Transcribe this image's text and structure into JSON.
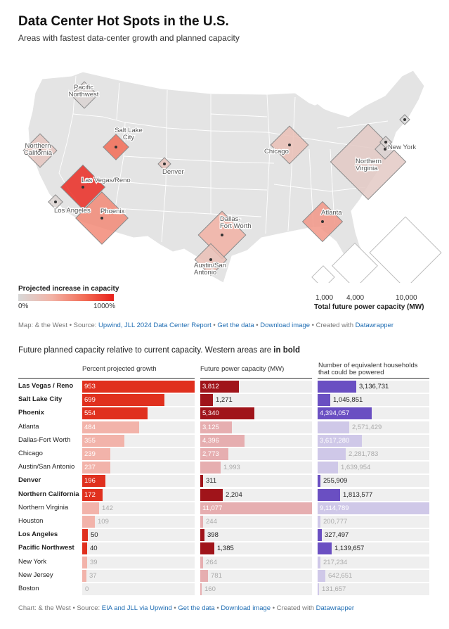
{
  "header": {
    "title": "Data Center Hot Spots in the U.S.",
    "subtitle": "Areas with fastest data-center growth and planned capacity"
  },
  "colors": {
    "growth_west": "#e0301e",
    "growth_other": "#f2b3aa",
    "power_west": "#a0141a",
    "power_other": "#e6aeb0",
    "households_west": "#6a4fc2",
    "households_other": "#cfc8e8",
    "track": "#efefef",
    "land": "#e4e4e4",
    "state_border": "#ffffff"
  },
  "map": {
    "legend": {
      "title": "Projected increase in capacity",
      "min_label": "0%",
      "max_label": "1000%",
      "size_title": "Total future power capacity (MW)",
      "size_labels": [
        "1,000",
        "4,000",
        "10,000"
      ]
    },
    "markers": [
      {
        "name": "Pacific Northwest",
        "lines": [
          "Pacific",
          "Northwest"
        ],
        "growth": 40,
        "mw": 1385
      },
      {
        "name": "Northern California",
        "lines": [
          "Northern",
          "California"
        ],
        "growth": 172,
        "mw": 2204
      },
      {
        "name": "Salt Lake City",
        "lines": [
          "Salt Lake",
          "City"
        ],
        "growth": 699,
        "mw": 1271
      },
      {
        "name": "Denver",
        "lines": [
          "Denver"
        ],
        "growth": 196,
        "mw": 311
      },
      {
        "name": "Las Vegas/Reno",
        "lines": [
          "Las Vegas/Reno"
        ],
        "growth": 953,
        "mw": 3812
      },
      {
        "name": "Los Angeles",
        "lines": [
          "Los Angeles"
        ],
        "growth": 50,
        "mw": 398
      },
      {
        "name": "Phoenix",
        "lines": [
          "Phoenix"
        ],
        "growth": 554,
        "mw": 5340
      },
      {
        "name": "Dallas-Fort Worth",
        "lines": [
          "Dallas-",
          "Fort Worth"
        ],
        "growth": 355,
        "mw": 4396
      },
      {
        "name": "Austin/San Antonio",
        "lines": [
          "Austin/San",
          "Antonio"
        ],
        "growth": 237,
        "mw": 1993
      },
      {
        "name": "Chicago",
        "lines": [
          "Chicago"
        ],
        "growth": 239,
        "mw": 2773
      },
      {
        "name": "Atlanta",
        "lines": [
          "Atlanta"
        ],
        "growth": 484,
        "mw": 3125
      },
      {
        "name": "Northern Virginia",
        "lines": [
          "Northern",
          "Virginia"
        ],
        "growth": 142,
        "mw": 11077
      },
      {
        "name": "New York",
        "lines": [
          "New York"
        ],
        "growth": 39,
        "mw": 264
      },
      {
        "name": "New Jersey",
        "lines": [],
        "growth": 37,
        "mw": 781
      },
      {
        "name": "Boston",
        "lines": [],
        "growth": 0,
        "mw": 160
      }
    ],
    "source": {
      "prefix": "Map: & the West • Source: ",
      "link1": "Upwind, JLL 2024 Data Center Report",
      "sep1": " • ",
      "link2": "Get the data",
      "sep2": " • ",
      "link3": "Download image",
      "suffix": " • Created with ",
      "link4": "Datawrapper"
    }
  },
  "table": {
    "heading_prefix": "Future planned capacity relative to current capacity. Western areas are ",
    "heading_bold": "in bold",
    "columns": [
      "Percent projected growth",
      "Future power capacity (MW)",
      "Number of equivalent households that could be powered"
    ],
    "source": {
      "prefix": "Chart: & the West • Source: ",
      "link1": "EIA and JLL via Upwind",
      "sep1": " • ",
      "link2": "Get the data",
      "sep2": " • ",
      "link3": "Download image",
      "suffix": " • Created with ",
      "link4": "Datawrapper"
    }
  },
  "chart_data": {
    "type": "table",
    "title": "Future planned capacity relative to current capacity. Western areas are in bold",
    "columns": [
      "Percent projected growth",
      "Future power capacity (MW)",
      "Number of equivalent households that could be powered"
    ],
    "scales": {
      "growth_max": 953,
      "power_max": 11077,
      "households_max": 9114789
    },
    "rows": [
      {
        "name": "Las Vegas / Reno",
        "west": true,
        "growth": 953,
        "growth_label": "953",
        "power": 3812,
        "power_label": "3,812",
        "households": 3136731,
        "households_label": "3,136,731"
      },
      {
        "name": "Salt Lake City",
        "west": true,
        "growth": 699,
        "growth_label": "699",
        "power": 1271,
        "power_label": "1,271",
        "households": 1045851,
        "households_label": "1,045,851"
      },
      {
        "name": "Phoenix",
        "west": true,
        "growth": 554,
        "growth_label": "554",
        "power": 5340,
        "power_label": "5,340",
        "households": 4394057,
        "households_label": "4,394,057"
      },
      {
        "name": "Atlanta",
        "west": false,
        "growth": 484,
        "growth_label": "484",
        "power": 3125,
        "power_label": "3,125",
        "households": 2571429,
        "households_label": "2,571,429"
      },
      {
        "name": "Dallas-Fort Worth",
        "west": false,
        "growth": 355,
        "growth_label": "355",
        "power": 4396,
        "power_label": "4,396",
        "households": 3617280,
        "households_label": "3,617,280"
      },
      {
        "name": "Chicago",
        "west": false,
        "growth": 239,
        "growth_label": "239",
        "power": 2773,
        "power_label": "2,773",
        "households": 2281783,
        "households_label": "2,281,783"
      },
      {
        "name": "Austin/San Antonio",
        "west": false,
        "growth": 237,
        "growth_label": "237",
        "power": 1993,
        "power_label": "1,993",
        "households": 1639954,
        "households_label": "1,639,954"
      },
      {
        "name": "Denver",
        "west": true,
        "growth": 196,
        "growth_label": "196",
        "power": 311,
        "power_label": "311",
        "households": 255909,
        "households_label": "255,909"
      },
      {
        "name": "Northern California",
        "west": true,
        "growth": 172,
        "growth_label": "172",
        "power": 2204,
        "power_label": "2,204",
        "households": 1813577,
        "households_label": "1,813,577"
      },
      {
        "name": "Northern Virginia",
        "west": false,
        "growth": 142,
        "growth_label": "142",
        "power": 11077,
        "power_label": "11,077",
        "households": 9114789,
        "households_label": "9,114,789"
      },
      {
        "name": "Houston",
        "west": false,
        "growth": 109,
        "growth_label": "109",
        "power": 244,
        "power_label": "244",
        "households": 200777,
        "households_label": "200,777"
      },
      {
        "name": "Los Angeles",
        "west": true,
        "growth": 50,
        "growth_label": "50",
        "power": 398,
        "power_label": "398",
        "households": 327497,
        "households_label": "327,497"
      },
      {
        "name": "Pacific Northwest",
        "west": true,
        "growth": 40,
        "growth_label": "40",
        "power": 1385,
        "power_label": "1,385",
        "households": 1139657,
        "households_label": "1,139,657"
      },
      {
        "name": "New York",
        "west": false,
        "growth": 39,
        "growth_label": "39",
        "power": 264,
        "power_label": "264",
        "households": 217234,
        "households_label": "217,234"
      },
      {
        "name": "New Jersey",
        "west": false,
        "growth": 37,
        "growth_label": "37",
        "power": 781,
        "power_label": "781",
        "households": 642651,
        "households_label": "642,651"
      },
      {
        "name": "Boston",
        "west": false,
        "growth": 0,
        "growth_label": "0",
        "power": 160,
        "power_label": "160",
        "households": 131657,
        "households_label": "131,657"
      }
    ]
  }
}
